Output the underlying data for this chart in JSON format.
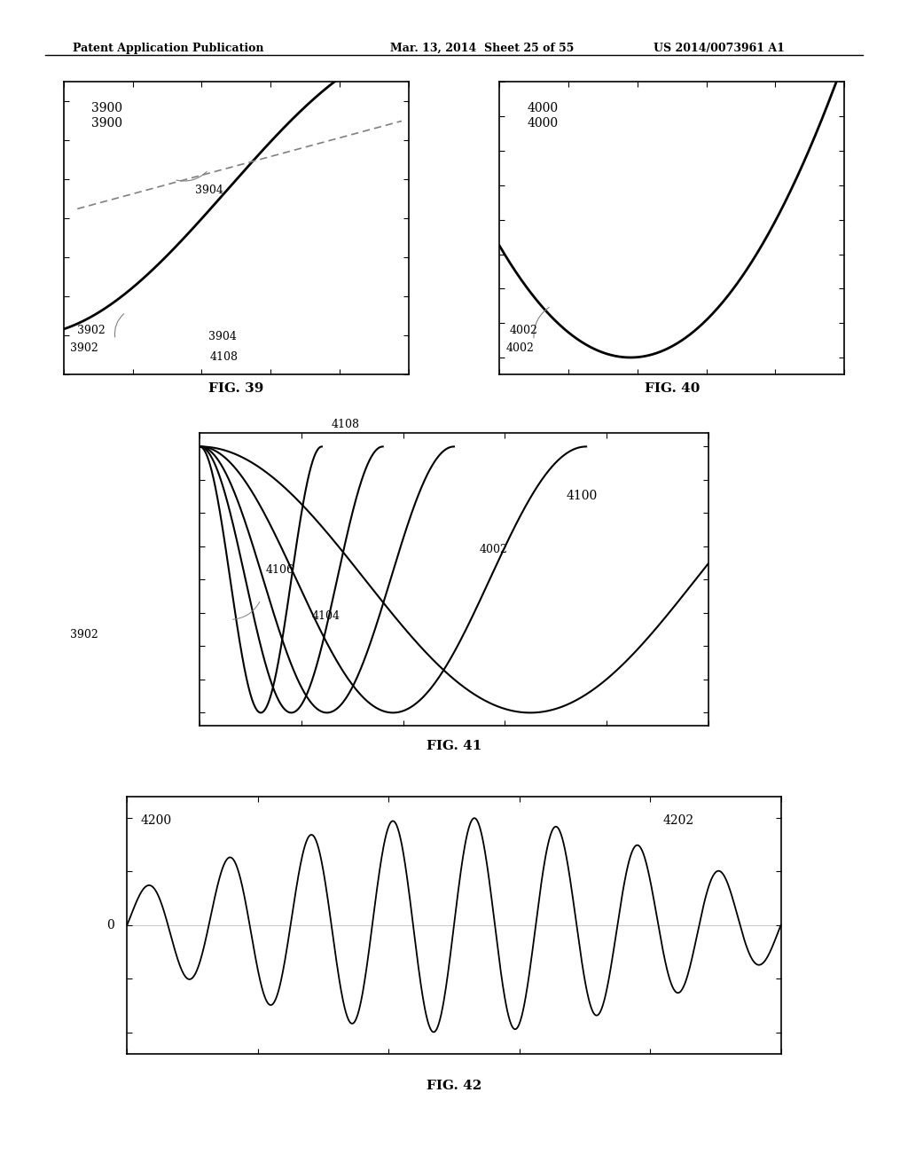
{
  "bg_color": "#ffffff",
  "header_text": "Patent Application Publication",
  "header_date": "Mar. 13, 2014  Sheet 25 of 55",
  "header_patent": "US 2014/0073961 A1",
  "fig39_label": "3900",
  "fig39_sublabel1": "3902",
  "fig39_sublabel2": "3904",
  "fig40_label": "4000",
  "fig40_sublabel": "4002",
  "fig41_label": "4100",
  "fig41_sub1": "4002",
  "fig41_sub2": "4104",
  "fig41_sub3": "4106",
  "fig41_sub4": "4108",
  "fig42_label": "4200",
  "fig42_sublabel": "4202",
  "fig42_zero": "0"
}
